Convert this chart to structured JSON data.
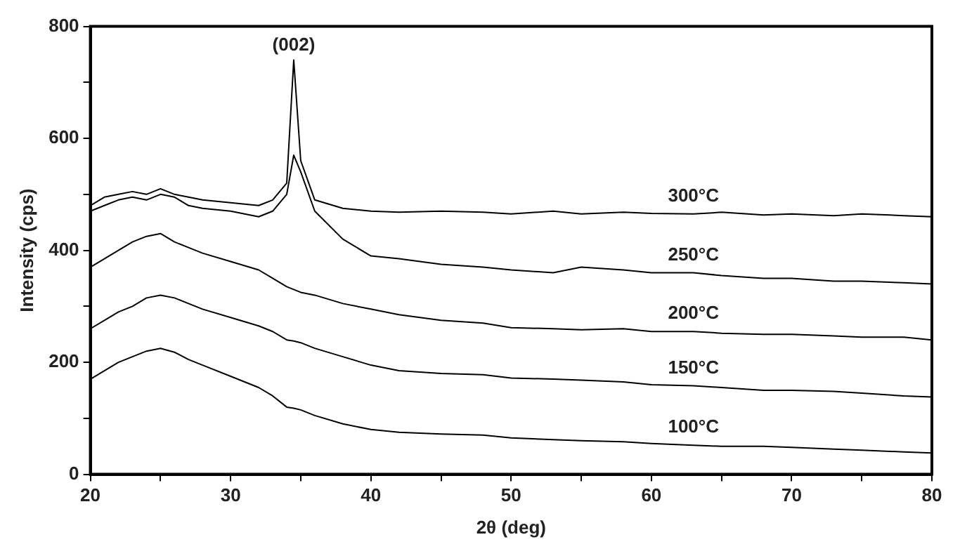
{
  "chart_data": {
    "type": "line",
    "xlabel": "2θ (deg)",
    "ylabel": "Intensity (cps)",
    "x": [
      20,
      21,
      22,
      23,
      24,
      25,
      26,
      27,
      28,
      30,
      32,
      33,
      34,
      34.5,
      35,
      36,
      38,
      40,
      42,
      45,
      48,
      50,
      53,
      55,
      58,
      60,
      63,
      65,
      68,
      70,
      73,
      75,
      78,
      80
    ],
    "series": [
      {
        "name": "300°C",
        "color": "#000000",
        "values": [
          480,
          495,
          500,
          505,
          500,
          510,
          500,
          495,
          490,
          485,
          480,
          490,
          520,
          740,
          560,
          490,
          475,
          470,
          468,
          470,
          468,
          465,
          470,
          465,
          468,
          466,
          465,
          468,
          463,
          465,
          462,
          465,
          462,
          460
        ]
      },
      {
        "name": "250°C",
        "color": "#000000",
        "values": [
          470,
          480,
          490,
          495,
          490,
          500,
          495,
          480,
          475,
          470,
          460,
          470,
          500,
          570,
          540,
          470,
          420,
          390,
          385,
          375,
          370,
          365,
          360,
          370,
          365,
          360,
          360,
          355,
          350,
          350,
          345,
          345,
          342,
          340
        ]
      },
      {
        "name": "200°C",
        "color": "#000000",
        "values": [
          370,
          385,
          400,
          415,
          425,
          430,
          415,
          405,
          395,
          380,
          365,
          350,
          335,
          330,
          325,
          320,
          305,
          295,
          285,
          275,
          270,
          262,
          260,
          258,
          260,
          255,
          255,
          252,
          250,
          250,
          247,
          245,
          245,
          240
        ]
      },
      {
        "name": "150°C",
        "color": "#000000",
        "values": [
          260,
          275,
          290,
          300,
          315,
          320,
          315,
          305,
          295,
          280,
          265,
          255,
          240,
          238,
          235,
          225,
          210,
          195,
          185,
          180,
          178,
          172,
          170,
          168,
          165,
          160,
          158,
          155,
          150,
          150,
          148,
          145,
          140,
          138
        ]
      },
      {
        "name": "100°C",
        "color": "#000000",
        "values": [
          170,
          185,
          200,
          210,
          220,
          225,
          218,
          205,
          195,
          175,
          155,
          140,
          120,
          118,
          115,
          105,
          90,
          80,
          75,
          72,
          70,
          65,
          62,
          60,
          58,
          55,
          52,
          50,
          50,
          48,
          45,
          43,
          40,
          38
        ]
      }
    ],
    "annotations": [
      {
        "text": "(002)",
        "x": 34.5,
        "y": 740
      }
    ],
    "xlim": [
      20,
      80
    ],
    "xticks": [
      20,
      {
        "value": 25,
        "label": null
      },
      30,
      {
        "value": 35,
        "label": null
      },
      40,
      {
        "value": 45,
        "label": null
      },
      50,
      {
        "value": 55,
        "label": null
      },
      60,
      {
        "value": 65,
        "label": null
      },
      70,
      {
        "value": 75,
        "label": null
      },
      80
    ],
    "ylim": [
      0,
      800
    ],
    "yticks": [
      0,
      {
        "value": 100,
        "label": null
      },
      200,
      {
        "value": 300,
        "label": null
      },
      400,
      {
        "value": 500,
        "label": null
      },
      600,
      {
        "value": 700,
        "label": null
      },
      800
    ],
    "grid": false,
    "legend": false,
    "marker": "none",
    "line_style": "solid"
  }
}
